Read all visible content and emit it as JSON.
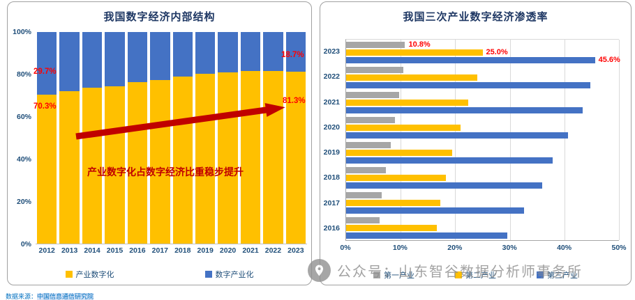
{
  "colors": {
    "title": "#1F3864",
    "axis_label": "#1F4E79",
    "callout": "#FF0000",
    "arrow": "#C00000"
  },
  "watermark": {
    "icon": "location-pin-icon",
    "text": "公众号：山东智谷数据分析师事务所"
  },
  "source_note": {
    "prefix": "数据来源：",
    "text": "中国信息通信研究院"
  },
  "chart_data": [
    {
      "type": "bar",
      "variant": "stacked-column-100",
      "title": "我国数字经济内部结构",
      "categories": [
        "2012",
        "2013",
        "2014",
        "2015",
        "2016",
        "2017",
        "2018",
        "2019",
        "2020",
        "2021",
        "2022",
        "2023"
      ],
      "series": [
        {
          "name": "产业数字化",
          "color": "#FFC000",
          "values": [
            70.3,
            72.0,
            73.8,
            74.3,
            76.2,
            77.4,
            79.0,
            80.2,
            80.9,
            81.7,
            81.7,
            81.3
          ]
        },
        {
          "name": "数字产业化",
          "color": "#4472C4",
          "values": [
            29.7,
            28.0,
            26.2,
            25.7,
            23.8,
            22.6,
            21.0,
            19.8,
            19.1,
            18.3,
            18.3,
            18.7
          ]
        }
      ],
      "ylim": [
        0,
        100
      ],
      "yticks": [
        "100%",
        "80%",
        "60%",
        "40%",
        "20%",
        "0%"
      ],
      "callouts": {
        "first_blue": "29.7%",
        "first_yellow": "70.3%",
        "last_blue": "18.7%",
        "last_yellow": "81.3%"
      },
      "annotation": "产业数字化占数字经济比重稳步提升",
      "annotation_color": "#C00000",
      "grid": "off",
      "legend_position": "bottom"
    },
    {
      "type": "bar",
      "variant": "grouped-horizontal",
      "title": "我国三次产业数字经济渗透率",
      "categories": [
        "2023",
        "2022",
        "2021",
        "2020",
        "2019",
        "2018",
        "2017",
        "2016"
      ],
      "series": [
        {
          "name": "第一产业",
          "color": "#A6A6A6",
          "values": [
            10.8,
            10.5,
            9.7,
            8.9,
            8.2,
            7.3,
            6.5,
            6.2
          ]
        },
        {
          "name": "第二产业",
          "color": "#FFC000",
          "values": [
            25.0,
            24.0,
            22.4,
            21.0,
            19.5,
            18.3,
            17.2,
            16.6
          ]
        },
        {
          "name": "第三产业",
          "color": "#4472C4",
          "values": [
            45.6,
            44.7,
            43.3,
            40.7,
            37.8,
            35.9,
            32.6,
            29.6
          ]
        }
      ],
      "xlim": [
        0,
        50
      ],
      "xticks": [
        "0%",
        "10%",
        "20%",
        "30%",
        "40%",
        "50%"
      ],
      "data_labels": {
        "category": "2023",
        "values": [
          "10.8%",
          "25.0%",
          "45.6%"
        ],
        "color": "#FF0000"
      },
      "grid": "vertical",
      "legend_position": "bottom"
    }
  ]
}
